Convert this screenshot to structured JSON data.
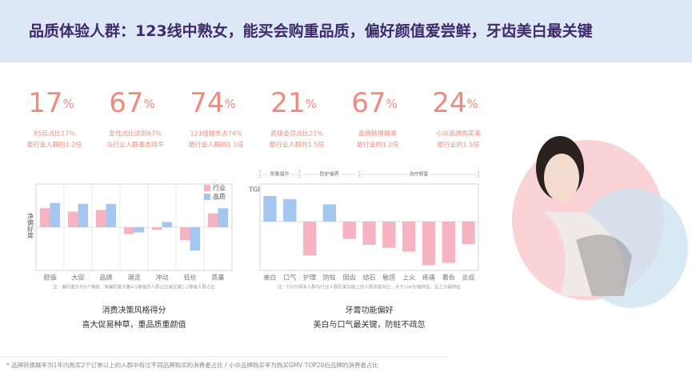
{
  "header": {
    "title": "品质体验人群：123线中熟女，能买会购重品质，偏好颜值爱尝鲜，牙齿美白最关键"
  },
  "stats": [
    {
      "value": 17,
      "unit": "%",
      "lines": [
        "85后占比17%",
        "是行业人群的1.2倍"
      ]
    },
    {
      "value": 67,
      "unit": "%",
      "lines": [
        "女性占比达到67%",
        "与行业人群基本持平"
      ]
    },
    {
      "value": 74,
      "unit": "%",
      "lines": [
        "123线城市占74%",
        "是行业人群的1.1倍"
      ]
    },
    {
      "value": 21,
      "unit": "%",
      "lines": [
        "高级会员占比21%",
        "是行业人群的1.5倍"
      ]
    },
    {
      "value": 67,
      "unit": "%",
      "lines": [
        "品牌转换概率",
        "是行业的1.2倍"
      ]
    },
    {
      "value": 24,
      "unit": "%",
      "lines": [
        "小众品牌购买率",
        "是行业的1.5倍"
      ]
    }
  ],
  "chart_data": [
    {
      "type": "bar",
      "ylabel": "净偏好度",
      "categories": [
        "颜值",
        "大促",
        "品牌",
        "潮流",
        "冲动",
        "低价",
        "质量"
      ],
      "series": [
        {
          "name": "行业",
          "color": "#f6b3c1",
          "values": [
            22,
            18,
            20,
            -8,
            -3,
            -15,
            16
          ]
        },
        {
          "name": "品质",
          "color": "#a5c6ef",
          "values": [
            28,
            27,
            27,
            -6,
            6,
            -27,
            22
          ]
        }
      ],
      "ylim": [
        -50,
        50
      ],
      "grid": true,
      "legend": "upper-right",
      "note": "注：偏好度分为5个等级，净偏好度为第4-5等级的人群占比减去第1-2等级人群占比",
      "title": "消费决策风格得分",
      "subtitle": "喜大促易种草，重品质重颜值"
    },
    {
      "type": "bar",
      "ylabel": "TGI",
      "groups": [
        "形象提升",
        "防护保养",
        "治疗修复"
      ],
      "categories": [
        "美白",
        "口气",
        "护理",
        "防蛀",
        "固齿",
        "结石",
        "敏感",
        "上火",
        "疼痛",
        "着色",
        "炎症"
      ],
      "values": [
        34,
        30,
        -45,
        23,
        -23,
        -31,
        -35,
        -40,
        -58,
        -55,
        -30
      ],
      "colors": [
        "#a5c6ef",
        "#a5c6ef",
        "#f6b3c1",
        "#a5c6ef",
        "#f6b3c1",
        "#f6b3c1",
        "#f6b3c1",
        "#f6b3c1",
        "#f6b3c1",
        "#f6b3c1",
        "#f6b3c1"
      ],
      "ylim": [
        -65,
        50
      ],
      "note": "注：TGI为样本人群与行业人群在某功能上的人群浓度对比，大于100为强特征，反之为弱特征",
      "title": "牙膏功能偏好",
      "subtitle": "美白与口气最关键，防蛀不疏忽"
    }
  ],
  "footer": {
    "text": "* 品牌转换概率为1年内购买2个订单以上的人群中有过不同品牌购买的消费者占比 / 小众品牌购买率为购买GMV TOP20后品牌的消费者占比"
  }
}
